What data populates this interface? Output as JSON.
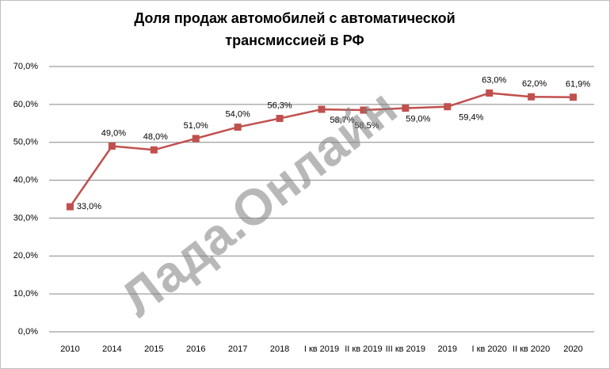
{
  "chart_data": {
    "type": "line",
    "title": [
      "Доля продаж автомобилей с автоматической",
      "трансмиссией  в РФ"
    ],
    "watermark": "Лада.Онлайн",
    "categories": [
      "2010",
      "2014",
      "2015",
      "2016",
      "2017",
      "2018",
      "I кв 2019",
      "II кв 2019",
      "III кв 2019",
      "2019",
      "I кв 2020",
      "II кв 2020",
      "2020"
    ],
    "series": [
      {
        "color": "#c0504d",
        "values": [
          33.0,
          49.0,
          48.0,
          51.0,
          54.0,
          56.3,
          58.7,
          58.5,
          59.0,
          59.4,
          63.0,
          62.0,
          61.9
        ],
        "value_labels": [
          "33,0%",
          "49,0%",
          "48,0%",
          "51,0%",
          "54,0%",
          "56,3%",
          "58,7%",
          "58,5%",
          "59,0%",
          "59,4%",
          "63,0%",
          "62,0%",
          "61,9%"
        ]
      }
    ],
    "ylim": [
      0,
      70
    ],
    "yticks": [
      {
        "value": 0,
        "label": "0,0%"
      },
      {
        "value": 10,
        "label": "10,0%"
      },
      {
        "value": 20,
        "label": "20,0%"
      },
      {
        "value": 30,
        "label": "30,0%"
      },
      {
        "value": 40,
        "label": "40,0%"
      },
      {
        "value": 50,
        "label": "50,0%"
      },
      {
        "value": 60,
        "label": "60,0%"
      },
      {
        "value": 70,
        "label": "70,0%"
      }
    ],
    "grid": true
  }
}
